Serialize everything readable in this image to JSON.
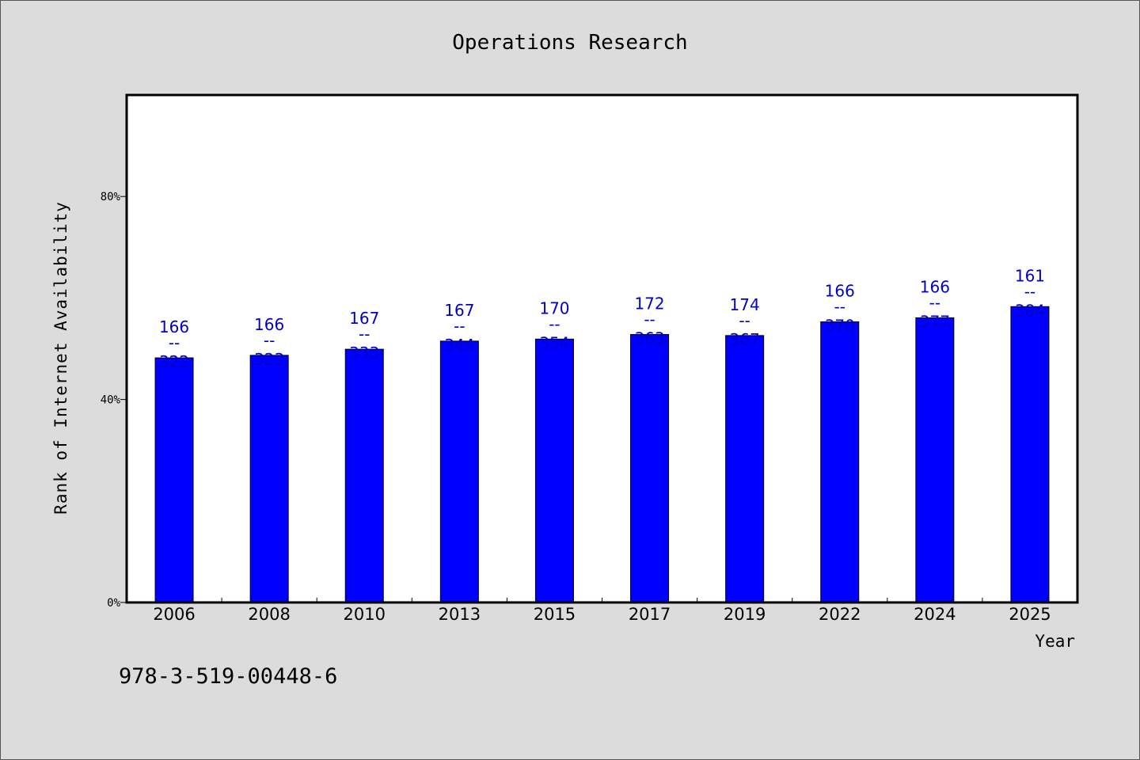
{
  "chart_data": {
    "type": "bar",
    "title": "Operations Research",
    "xlabel": "Year",
    "ylabel": "Rank of Internet Availability",
    "categories": [
      "2006",
      "2008",
      "2010",
      "2013",
      "2015",
      "2017",
      "2019",
      "2022",
      "2024",
      "2025"
    ],
    "values": [
      48.2,
      48.7,
      49.9,
      51.5,
      51.9,
      52.8,
      52.6,
      55.3,
      56.1,
      58.3
    ],
    "ranks": [
      "166",
      "166",
      "167",
      "167",
      "170",
      "172",
      "174",
      "166",
      "166",
      "161"
    ],
    "totals": [
      "322",
      "323",
      "333",
      "344",
      "354",
      "363",
      "367",
      "370",
      "377",
      "384"
    ],
    "rank_separator": "--",
    "ylim": [
      0,
      100
    ],
    "yticks": [
      0,
      40,
      80
    ],
    "ytick_labels": [
      "0%",
      "40%",
      "80%"
    ],
    "grid": false,
    "bar_color": "#0000ff",
    "label_color": "#0000cc"
  },
  "footnote": "978-3-519-00448-6"
}
